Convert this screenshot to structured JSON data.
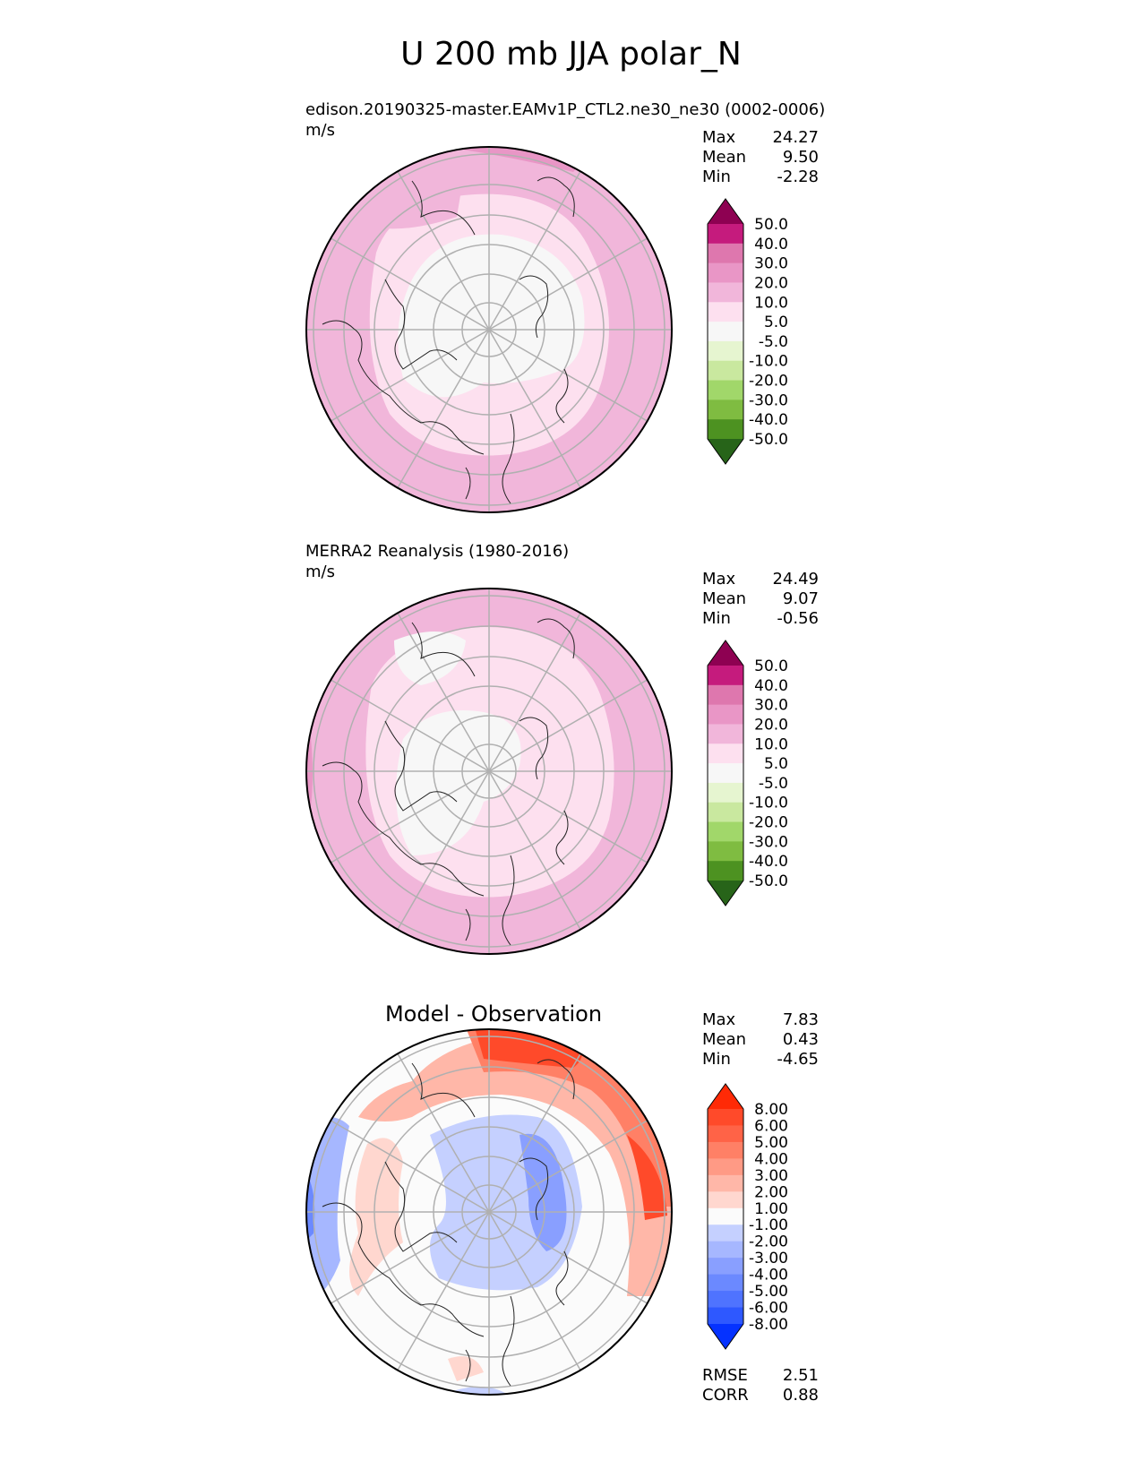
{
  "figure": {
    "title": "U 200 mb JJA polar_N"
  },
  "panels": [
    {
      "id": "model",
      "title": "edison.20190325-master.EAMv1P_CTL2.ne30_ne30 (0002-0006)",
      "units": "m/s",
      "stats": [
        {
          "label": "Max",
          "value": "24.27"
        },
        {
          "label": "Mean",
          "value": "9.50"
        },
        {
          "label": "Min",
          "value": "-2.28"
        }
      ]
    },
    {
      "id": "obs",
      "title": "MERRA2 Reanalysis (1980-2016)",
      "units": "m/s",
      "stats": [
        {
          "label": "Max",
          "value": "24.49"
        },
        {
          "label": "Mean",
          "value": "9.07"
        },
        {
          "label": "Min",
          "value": "-0.56"
        }
      ]
    },
    {
      "id": "diff",
      "title": "Model - Observation",
      "units": "",
      "stats": [
        {
          "label": "Max",
          "value": "7.83"
        },
        {
          "label": "Mean",
          "value": "0.43"
        },
        {
          "label": "Min",
          "value": "-4.65"
        }
      ],
      "metrics": [
        {
          "label": "RMSE",
          "value": "2.51"
        },
        {
          "label": "CORR",
          "value": "0.88"
        }
      ]
    }
  ],
  "chart_data": [
    {
      "type": "heatmap",
      "projection": "north-polar-stereographic",
      "title": "edison.20190325-master.EAMv1P_CTL2.ne30_ne30 (0002-0006)",
      "variable": "U 200 mb",
      "units": "m/s",
      "colorbar": {
        "levels": [
          "-50.0",
          "-40.0",
          "-30.0",
          "-20.0",
          "-10.0",
          "-5.0",
          "5.0",
          "10.0",
          "20.0",
          "30.0",
          "40.0",
          "50.0"
        ],
        "colors": [
          "#276419",
          "#4d9221",
          "#7fbc41",
          "#a1d76a",
          "#c9e89f",
          "#e6f5d0",
          "#f7f7f7",
          "#fde0ef",
          "#f1b6da",
          "#e996c6",
          "#de77ae",
          "#c51b7d",
          "#8e0152"
        ],
        "extend": "both"
      },
      "field_zones": [
        {
          "band": "pole to ~70N",
          "value_class": "-5.0 to 5.0"
        },
        {
          "band": "~70N to ~55N",
          "value_class": "5.0 to 10.0"
        },
        {
          "band": "~55N to ~40N",
          "value_class": "10.0 to 20.0"
        },
        {
          "band": "edge jet",
          "value_class": "20.0 to 30.0"
        }
      ]
    },
    {
      "type": "heatmap",
      "projection": "north-polar-stereographic",
      "title": "MERRA2 Reanalysis (1980-2016)",
      "variable": "U 200 mb",
      "units": "m/s",
      "colorbar": {
        "levels": [
          "-50.0",
          "-40.0",
          "-30.0",
          "-20.0",
          "-10.0",
          "-5.0",
          "5.0",
          "10.0",
          "20.0",
          "30.0",
          "40.0",
          "50.0"
        ],
        "colors": [
          "#276419",
          "#4d9221",
          "#7fbc41",
          "#a1d76a",
          "#c9e89f",
          "#e6f5d0",
          "#f7f7f7",
          "#fde0ef",
          "#f1b6da",
          "#e996c6",
          "#de77ae",
          "#c51b7d",
          "#8e0152"
        ],
        "extend": "both"
      },
      "field_zones": [
        {
          "band": "pole to ~72N",
          "value_class": "-5.0 to 5.0"
        },
        {
          "band": "~72N to ~55N",
          "value_class": "5.0 to 10.0"
        },
        {
          "band": "~55N to ~40N",
          "value_class": "10.0 to 20.0"
        },
        {
          "band": "edge jet",
          "value_class": "20.0 to 30.0"
        }
      ]
    },
    {
      "type": "heatmap",
      "projection": "north-polar-stereographic",
      "title": "Model - Observation",
      "variable": "U 200 mb difference",
      "units": "m/s",
      "colorbar": {
        "levels": [
          "-8.00",
          "-6.00",
          "-5.00",
          "-4.00",
          "-3.00",
          "-2.00",
          "-1.00",
          "1.00",
          "2.00",
          "3.00",
          "4.00",
          "5.00",
          "6.00",
          "8.00"
        ],
        "colors": [
          "#0532ff",
          "#2e58ff",
          "#4f73ff",
          "#6b89ff",
          "#899fff",
          "#a6b7ff",
          "#c5d0ff",
          "#fbfbfb",
          "#ffd7cf",
          "#ffb7a8",
          "#ff9a85",
          "#ff8066",
          "#ff6347",
          "#ff4a2a",
          "#ff2a06"
        ],
        "extend": "both"
      },
      "rmse": 2.51,
      "corr": 0.88
    }
  ]
}
